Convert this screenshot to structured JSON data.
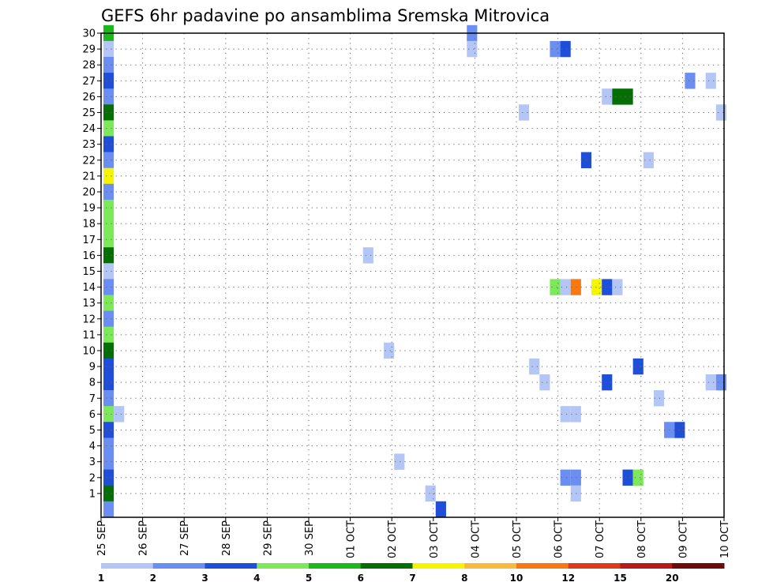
{
  "chart_data": {
    "type": "heatmap",
    "title": "GEFS 6hr padavine po ansamblima Sremska Mitrovica",
    "x_tick_labels": [
      "25 SEP",
      "26 SEP",
      "27 SEP",
      "28 SEP",
      "29 SEP",
      "30 SEP",
      "01 OCT",
      "02 OCT",
      "03 OCT",
      "04 OCT",
      "05 OCT",
      "06 OCT",
      "07 OCT",
      "08 OCT",
      "09 OCT",
      "10 OCT"
    ],
    "y_tick_labels": [
      "1",
      "2",
      "3",
      "4",
      "5",
      "6",
      "7",
      "8",
      "9",
      "10",
      "11",
      "12",
      "13",
      "14",
      "15",
      "16",
      "17",
      "18",
      "19",
      "20",
      "21",
      "22",
      "23",
      "24",
      "25",
      "26",
      "27",
      "28",
      "29",
      "30"
    ],
    "x_range_days": [
      0,
      15
    ],
    "y_range_members": [
      0,
      30
    ],
    "time_step_hours": 6,
    "grid": "dotted",
    "colorbar": {
      "labels": [
        "1",
        "2",
        "3",
        "4",
        "5",
        "6",
        "7",
        "8",
        "10",
        "12",
        "15",
        "20"
      ],
      "colors": [
        "#b4c6f5",
        "#6a8ef2",
        "#1f4ed8",
        "#7ce85a",
        "#1bb81b",
        "#056e05",
        "#f5f500",
        "#f9b93b",
        "#f77a10",
        "#dd3a1a",
        "#b81a1a",
        "#6d0a0a"
      ]
    },
    "cells": [
      {
        "m": 30,
        "t": 0,
        "c": 5
      },
      {
        "m": 29,
        "t": 0,
        "c": 1
      },
      {
        "m": 28,
        "t": 0,
        "c": 2
      },
      {
        "m": 27,
        "t": 0,
        "c": 3
      },
      {
        "m": 26,
        "t": 0,
        "c": 2
      },
      {
        "m": 25,
        "t": 0,
        "c": 6
      },
      {
        "m": 24,
        "t": 0,
        "c": 4
      },
      {
        "m": 23,
        "t": 0,
        "c": 3
      },
      {
        "m": 22,
        "t": 0,
        "c": 2
      },
      {
        "m": 21,
        "t": 0,
        "c": 7
      },
      {
        "m": 20,
        "t": 0,
        "c": 2
      },
      {
        "m": 19,
        "t": 0,
        "c": 4
      },
      {
        "m": 18,
        "t": 0,
        "c": 4
      },
      {
        "m": 17,
        "t": 0,
        "c": 4
      },
      {
        "m": 16,
        "t": 0,
        "c": 6
      },
      {
        "m": 15,
        "t": 0,
        "c": 1
      },
      {
        "m": 14,
        "t": 0,
        "c": 2
      },
      {
        "m": 13,
        "t": 0,
        "c": 4
      },
      {
        "m": 12,
        "t": 0,
        "c": 2
      },
      {
        "m": 11,
        "t": 0,
        "c": 4
      },
      {
        "m": 10,
        "t": 0,
        "c": 6
      },
      {
        "m": 9,
        "t": 0,
        "c": 3
      },
      {
        "m": 8,
        "t": 0,
        "c": 3
      },
      {
        "m": 7,
        "t": 0,
        "c": 2
      },
      {
        "m": 6,
        "t": 0,
        "c": 4
      },
      {
        "m": 5,
        "t": 0,
        "c": 3
      },
      {
        "m": 4,
        "t": 0,
        "c": 2
      },
      {
        "m": 3,
        "t": 0,
        "c": 2
      },
      {
        "m": 2,
        "t": 0,
        "c": 3
      },
      {
        "m": 1,
        "t": 0,
        "c": 6
      },
      {
        "m": 0,
        "t": 0,
        "c": 2
      },
      {
        "m": 6,
        "t": 1,
        "c": 1
      },
      {
        "m": 30,
        "t": 35,
        "c": 2
      },
      {
        "m": 29,
        "t": 35,
        "c": 1
      },
      {
        "m": 29,
        "t": 43,
        "c": 2
      },
      {
        "m": 29,
        "t": 44,
        "c": 3
      },
      {
        "m": 27,
        "t": 56,
        "c": 2
      },
      {
        "m": 27,
        "t": 58,
        "c": 1
      },
      {
        "m": 26,
        "t": 48,
        "c": 1
      },
      {
        "m": 26,
        "t": 49,
        "c": 6
      },
      {
        "m": 26,
        "t": 50,
        "c": 6
      },
      {
        "m": 25,
        "t": 40,
        "c": 1
      },
      {
        "m": 25,
        "t": 59,
        "c": 1
      },
      {
        "m": 22,
        "t": 46,
        "c": 3
      },
      {
        "m": 22,
        "t": 52,
        "c": 1
      },
      {
        "m": 16,
        "t": 25,
        "c": 1
      },
      {
        "m": 14,
        "t": 43,
        "c": 4
      },
      {
        "m": 14,
        "t": 44,
        "c": 1
      },
      {
        "m": 14,
        "t": 45,
        "c": 9
      },
      {
        "m": 14,
        "t": 47,
        "c": 7
      },
      {
        "m": 14,
        "t": 48,
        "c": 3
      },
      {
        "m": 14,
        "t": 49,
        "c": 1
      },
      {
        "m": 10,
        "t": 27,
        "c": 1
      },
      {
        "m": 9,
        "t": 41,
        "c": 1
      },
      {
        "m": 9,
        "t": 51,
        "c": 3
      },
      {
        "m": 8,
        "t": 42,
        "c": 1
      },
      {
        "m": 8,
        "t": 48,
        "c": 3
      },
      {
        "m": 8,
        "t": 58,
        "c": 1
      },
      {
        "m": 8,
        "t": 59,
        "c": 2
      },
      {
        "m": 7,
        "t": 53,
        "c": 1
      },
      {
        "m": 6,
        "t": 44,
        "c": 1
      },
      {
        "m": 6,
        "t": 45,
        "c": 1
      },
      {
        "m": 5,
        "t": 54,
        "c": 2
      },
      {
        "m": 5,
        "t": 55,
        "c": 3
      },
      {
        "m": 3,
        "t": 28,
        "c": 1
      },
      {
        "m": 2,
        "t": 44,
        "c": 2
      },
      {
        "m": 2,
        "t": 45,
        "c": 2
      },
      {
        "m": 2,
        "t": 50,
        "c": 3
      },
      {
        "m": 2,
        "t": 51,
        "c": 4
      },
      {
        "m": 1,
        "t": 31,
        "c": 1
      },
      {
        "m": 1,
        "t": 45,
        "c": 1
      },
      {
        "m": 0,
        "t": 32,
        "c": 3
      }
    ]
  }
}
